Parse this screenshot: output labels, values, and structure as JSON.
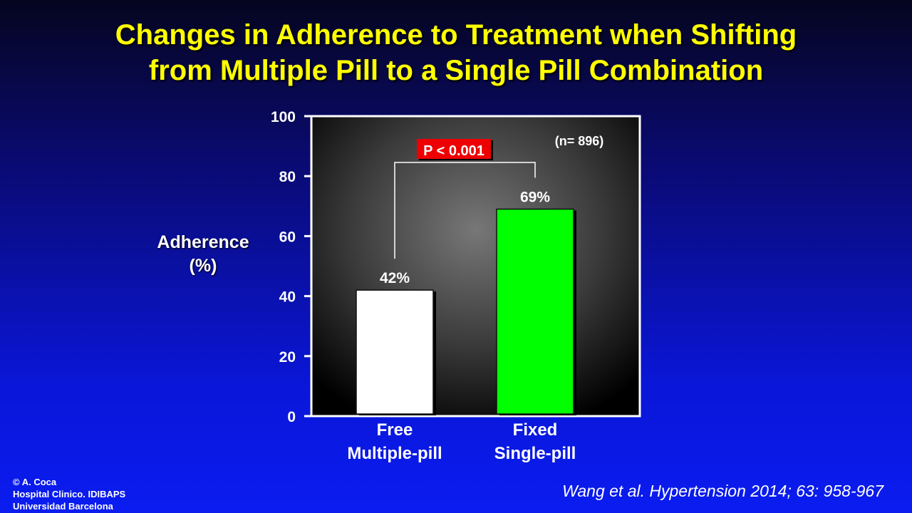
{
  "title_lines": [
    "Changes in Adherence to Treatment when Shifting",
    "from Multiple Pill to a Single Pill Combination"
  ],
  "footer": {
    "copyright": "© A. Coca",
    "institution": "Hospital Clinico. IDIBAPS",
    "university": "Universidad Barcelona"
  },
  "citation": "Wang et al. Hypertension 2014; 63: 958-967",
  "colors": {
    "title": "#ffff00",
    "bar_free": "#ffffff",
    "bar_fixed": "#00ff00",
    "pvalue_bg": "#ee0000"
  },
  "chart_data": {
    "type": "bar",
    "title": "",
    "ylabel_lines": [
      "Adherence",
      "(%)"
    ],
    "xlabel": "",
    "ylim": [
      0,
      100
    ],
    "yticks": [
      0,
      20,
      40,
      60,
      80,
      100
    ],
    "categories": [
      {
        "lines": [
          "Free",
          "Multiple-pill"
        ]
      },
      {
        "lines": [
          "Fixed",
          "Single-pill"
        ]
      }
    ],
    "values": [
      42,
      69
    ],
    "value_labels": [
      "42%",
      "69%"
    ],
    "bar_colors": [
      "#ffffff",
      "#00ff00"
    ],
    "annotations": {
      "p_value": "P < 0.001",
      "n": "(n= 896)"
    },
    "grid": false
  }
}
